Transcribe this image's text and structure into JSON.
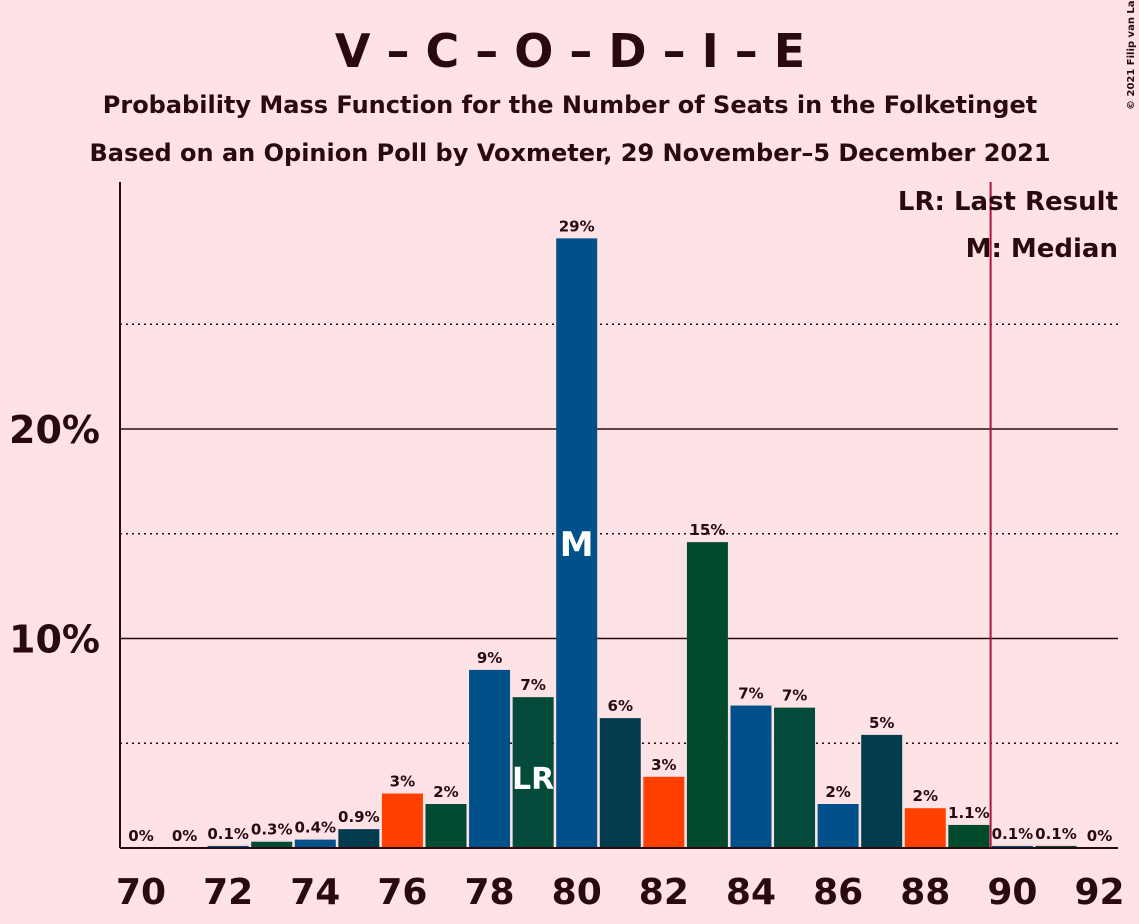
{
  "chart_data": {
    "type": "bar",
    "title": "V – C – O – D – I – E",
    "subtitle1": "Probability Mass Function for the Number of Seats in the Folketinget",
    "subtitle2": "Based on an Opinion Poll by Voxmeter, 29 November–5 December 2021",
    "copyright": "© 2021 Filip van Laenen",
    "legend": {
      "lr": "LR: Last Result",
      "m": "M: Median",
      "position": "top-right"
    },
    "ylim": [
      0,
      32
    ],
    "major_gridlines": [
      10,
      20
    ],
    "minor_gridlines": [
      5,
      15,
      25
    ],
    "y_ticks": [
      {
        "value": 10,
        "label": "10%"
      },
      {
        "value": 20,
        "label": "20%"
      }
    ],
    "x_ticks": [
      70,
      72,
      74,
      76,
      78,
      80,
      82,
      84,
      86,
      88,
      90,
      92
    ],
    "majority_line": 89.5,
    "last_result": 79,
    "median": 80,
    "last_result_marker": "LR",
    "median_marker": "M",
    "bars": [
      {
        "seats": 70,
        "value": 0,
        "label": "0%",
        "color": "#1f5b8c"
      },
      {
        "seats": 71,
        "value": 0,
        "label": "0%",
        "color": "#1f5b8c"
      },
      {
        "seats": 72,
        "value": 0.1,
        "label": "0.1%",
        "color": "#00508a"
      },
      {
        "seats": 73,
        "value": 0.3,
        "label": "0.3%",
        "color": "#014a33"
      },
      {
        "seats": 74,
        "value": 0.4,
        "label": "0.4%",
        "color": "#00508a"
      },
      {
        "seats": 75,
        "value": 0.9,
        "label": "0.9%",
        "color": "#033d4d"
      },
      {
        "seats": 76,
        "value": 2.6,
        "label": "3%",
        "color": "#ff4000"
      },
      {
        "seats": 77,
        "value": 2.1,
        "label": "2%",
        "color": "#014a33"
      },
      {
        "seats": 78,
        "value": 8.5,
        "label": "9%",
        "color": "#00508a"
      },
      {
        "seats": 79,
        "value": 7.2,
        "label": "7%",
        "color": "#034a3a"
      },
      {
        "seats": 80,
        "value": 29.1,
        "label": "29%",
        "color": "#00508a"
      },
      {
        "seats": 81,
        "value": 6.2,
        "label": "6%",
        "color": "#033d4d"
      },
      {
        "seats": 82,
        "value": 3.4,
        "label": "3%",
        "color": "#ff4000"
      },
      {
        "seats": 83,
        "value": 14.6,
        "label": "15%",
        "color": "#014a2b"
      },
      {
        "seats": 84,
        "value": 6.8,
        "label": "7%",
        "color": "#00508a"
      },
      {
        "seats": 85,
        "value": 6.7,
        "label": "7%",
        "color": "#034a3a"
      },
      {
        "seats": 86,
        "value": 2.1,
        "label": "2%",
        "color": "#00508a"
      },
      {
        "seats": 87,
        "value": 5.4,
        "label": "5%",
        "color": "#033d4d"
      },
      {
        "seats": 88,
        "value": 1.9,
        "label": "2%",
        "color": "#ff4000"
      },
      {
        "seats": 89,
        "value": 1.1,
        "label": "1.1%",
        "color": "#014a2b"
      },
      {
        "seats": 90,
        "value": 0.1,
        "label": "0.1%",
        "color": "#00508a"
      },
      {
        "seats": 91,
        "value": 0.1,
        "label": "0.1%",
        "color": "#034a3a"
      },
      {
        "seats": 92,
        "value": 0,
        "label": "0%",
        "color": "#00508a"
      }
    ],
    "colors": {
      "background": "#fde2e6",
      "text": "#2b0a0f",
      "majority": "#b0123a"
    }
  }
}
